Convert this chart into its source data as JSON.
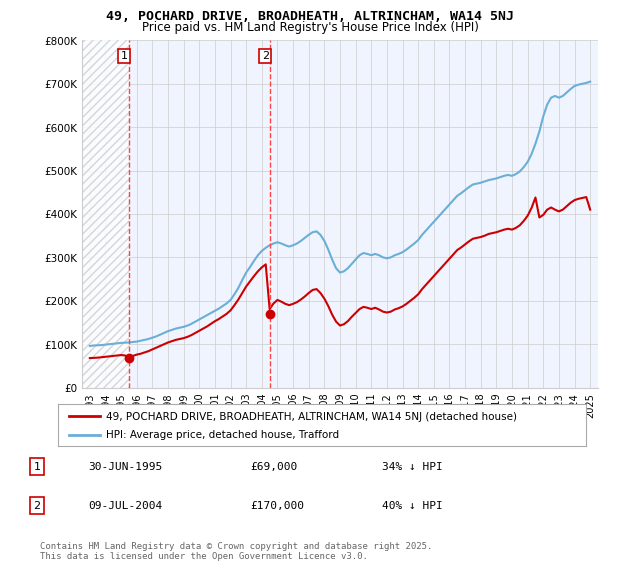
{
  "title": "49, POCHARD DRIVE, BROADHEATH, ALTRINCHAM, WA14 5NJ",
  "subtitle": "Price paid vs. HM Land Registry's House Price Index (HPI)",
  "xlabel": "",
  "ylabel": "",
  "ylim": [
    0,
    800000
  ],
  "xlim_start": 1992.5,
  "xlim_end": 2025.5,
  "yticks": [
    0,
    100000,
    200000,
    300000,
    400000,
    500000,
    600000,
    700000,
    800000
  ],
  "ytick_labels": [
    "£0",
    "£100K",
    "£200K",
    "£300K",
    "£400K",
    "£500K",
    "£600K",
    "£700K",
    "£800K"
  ],
  "xtick_labels": [
    "1993",
    "1994",
    "1995",
    "1996",
    "1997",
    "1998",
    "1999",
    "2000",
    "2001",
    "2002",
    "2003",
    "2004",
    "2005",
    "2006",
    "2007",
    "2008",
    "2009",
    "2010",
    "2011",
    "2012",
    "2013",
    "2014",
    "2015",
    "2016",
    "2017",
    "2018",
    "2019",
    "2020",
    "2021",
    "2022",
    "2023",
    "2024",
    "2025"
  ],
  "hpi_color": "#6baed6",
  "price_color": "#cc0000",
  "transaction_marker_color": "#cc0000",
  "vline_color": "#ff4444",
  "hatch_color": "#cccccc",
  "bg_color": "#f0f4ff",
  "grid_color": "#cccccc",
  "transactions": [
    {
      "date_num": 1995.5,
      "price": 69000,
      "label": "1",
      "date_str": "30-JUN-1995",
      "amount": "£69,000",
      "hpi_diff": "34% ↓ HPI"
    },
    {
      "date_num": 2004.52,
      "price": 170000,
      "label": "2",
      "date_str": "09-JUL-2004",
      "amount": "£170,000",
      "hpi_diff": "40% ↓ HPI"
    }
  ],
  "legend_label_price": "49, POCHARD DRIVE, BROADHEATH, ALTRINCHAM, WA14 5NJ (detached house)",
  "legend_label_hpi": "HPI: Average price, detached house, Trafford",
  "copyright_text": "Contains HM Land Registry data © Crown copyright and database right 2025.\nThis data is licensed under the Open Government Licence v3.0.",
  "hpi_data": {
    "years": [
      1993.0,
      1993.25,
      1993.5,
      1993.75,
      1994.0,
      1994.25,
      1994.5,
      1994.75,
      1995.0,
      1995.25,
      1995.5,
      1995.75,
      1996.0,
      1996.25,
      1996.5,
      1996.75,
      1997.0,
      1997.25,
      1997.5,
      1997.75,
      1998.0,
      1998.25,
      1998.5,
      1998.75,
      1999.0,
      1999.25,
      1999.5,
      1999.75,
      2000.0,
      2000.25,
      2000.5,
      2000.75,
      2001.0,
      2001.25,
      2001.5,
      2001.75,
      2002.0,
      2002.25,
      2002.5,
      2002.75,
      2003.0,
      2003.25,
      2003.5,
      2003.75,
      2004.0,
      2004.25,
      2004.5,
      2004.75,
      2005.0,
      2005.25,
      2005.5,
      2005.75,
      2006.0,
      2006.25,
      2006.5,
      2006.75,
      2007.0,
      2007.25,
      2007.5,
      2007.75,
      2008.0,
      2008.25,
      2008.5,
      2008.75,
      2009.0,
      2009.25,
      2009.5,
      2009.75,
      2010.0,
      2010.25,
      2010.5,
      2010.75,
      2011.0,
      2011.25,
      2011.5,
      2011.75,
      2012.0,
      2012.25,
      2012.5,
      2012.75,
      2013.0,
      2013.25,
      2013.5,
      2013.75,
      2014.0,
      2014.25,
      2014.5,
      2014.75,
      2015.0,
      2015.25,
      2015.5,
      2015.75,
      2016.0,
      2016.25,
      2016.5,
      2016.75,
      2017.0,
      2017.25,
      2017.5,
      2017.75,
      2018.0,
      2018.25,
      2018.5,
      2018.75,
      2019.0,
      2019.25,
      2019.5,
      2019.75,
      2020.0,
      2020.25,
      2020.5,
      2020.75,
      2021.0,
      2021.25,
      2021.5,
      2021.75,
      2022.0,
      2022.25,
      2022.5,
      2022.75,
      2023.0,
      2023.25,
      2023.5,
      2023.75,
      2024.0,
      2024.25,
      2024.5,
      2024.75,
      2025.0
    ],
    "values": [
      96000,
      97000,
      97500,
      98000,
      99000,
      100000,
      101000,
      102000,
      103000,
      103500,
      104000,
      105000,
      106000,
      108000,
      110000,
      112000,
      115000,
      118000,
      122000,
      126000,
      130000,
      133000,
      136000,
      138000,
      140000,
      143000,
      147000,
      152000,
      157000,
      162000,
      167000,
      172000,
      177000,
      182000,
      188000,
      194000,
      202000,
      215000,
      230000,
      248000,
      265000,
      278000,
      292000,
      305000,
      315000,
      322000,
      328000,
      332000,
      335000,
      332000,
      328000,
      325000,
      328000,
      332000,
      338000,
      345000,
      352000,
      358000,
      360000,
      352000,
      338000,
      318000,
      295000,
      275000,
      265000,
      268000,
      275000,
      285000,
      295000,
      305000,
      310000,
      308000,
      305000,
      308000,
      305000,
      300000,
      298000,
      300000,
      305000,
      308000,
      312000,
      318000,
      325000,
      332000,
      340000,
      352000,
      362000,
      372000,
      382000,
      392000,
      402000,
      412000,
      422000,
      432000,
      442000,
      448000,
      455000,
      462000,
      468000,
      470000,
      472000,
      475000,
      478000,
      480000,
      482000,
      485000,
      488000,
      490000,
      488000,
      492000,
      498000,
      508000,
      520000,
      538000,
      562000,
      590000,
      625000,
      652000,
      668000,
      672000,
      668000,
      672000,
      680000,
      688000,
      695000,
      698000,
      700000,
      702000,
      705000
    ]
  },
  "price_data": {
    "years": [
      1993.0,
      1993.25,
      1993.5,
      1993.75,
      1994.0,
      1994.25,
      1994.5,
      1994.75,
      1995.0,
      1995.25,
      1995.5,
      1995.75,
      1996.0,
      1996.25,
      1996.5,
      1996.75,
      1997.0,
      1997.25,
      1997.5,
      1997.75,
      1998.0,
      1998.25,
      1998.5,
      1998.75,
      1999.0,
      1999.25,
      1999.5,
      1999.75,
      2000.0,
      2000.25,
      2000.5,
      2000.75,
      2001.0,
      2001.25,
      2001.5,
      2001.75,
      2002.0,
      2002.25,
      2002.5,
      2002.75,
      2003.0,
      2003.25,
      2003.5,
      2003.75,
      2004.0,
      2004.25,
      2004.5,
      2004.75,
      2005.0,
      2005.25,
      2005.5,
      2005.75,
      2006.0,
      2006.25,
      2006.5,
      2006.75,
      2007.0,
      2007.25,
      2007.5,
      2007.75,
      2008.0,
      2008.25,
      2008.5,
      2008.75,
      2009.0,
      2009.25,
      2009.5,
      2009.75,
      2010.0,
      2010.25,
      2010.5,
      2010.75,
      2011.0,
      2011.25,
      2011.5,
      2011.75,
      2012.0,
      2012.25,
      2012.5,
      2012.75,
      2013.0,
      2013.25,
      2013.5,
      2013.75,
      2014.0,
      2014.25,
      2014.5,
      2014.75,
      2015.0,
      2015.25,
      2015.5,
      2015.75,
      2016.0,
      2016.25,
      2016.5,
      2016.75,
      2017.0,
      2017.25,
      2017.5,
      2017.75,
      2018.0,
      2018.25,
      2018.5,
      2018.75,
      2019.0,
      2019.25,
      2019.5,
      2019.75,
      2020.0,
      2020.25,
      2020.5,
      2020.75,
      2021.0,
      2021.25,
      2021.5,
      2021.75,
      2022.0,
      2022.25,
      2022.5,
      2022.75,
      2023.0,
      2023.25,
      2023.5,
      2023.75,
      2024.0,
      2024.25,
      2024.5,
      2024.75,
      2025.0
    ],
    "values": [
      68000,
      68500,
      69000,
      70000,
      71000,
      72000,
      73000,
      74000,
      75000,
      74000,
      69000,
      73000,
      76000,
      78000,
      81000,
      84000,
      88000,
      92000,
      96000,
      100000,
      104000,
      107000,
      110000,
      112000,
      114000,
      117000,
      121000,
      126000,
      131000,
      136000,
      141000,
      147000,
      153000,
      158000,
      164000,
      170000,
      178000,
      190000,
      203000,
      218000,
      233000,
      245000,
      257000,
      268000,
      277000,
      284000,
      181000,
      194000,
      202000,
      198000,
      193000,
      190000,
      193000,
      197000,
      203000,
      210000,
      218000,
      225000,
      227000,
      218000,
      205000,
      188000,
      168000,
      152000,
      143000,
      146000,
      153000,
      163000,
      172000,
      181000,
      186000,
      184000,
      181000,
      184000,
      180000,
      175000,
      173000,
      175000,
      180000,
      183000,
      187000,
      193000,
      200000,
      207000,
      215000,
      227000,
      237000,
      247000,
      257000,
      267000,
      277000,
      287000,
      297000,
      307000,
      317000,
      323000,
      330000,
      337000,
      343000,
      345000,
      347000,
      350000,
      354000,
      356000,
      358000,
      361000,
      364000,
      366000,
      364000,
      368000,
      374000,
      384000,
      396000,
      414000,
      438000,
      392000,
      398000,
      410000,
      415000,
      410000,
      406000,
      410000,
      418000,
      426000,
      432000,
      435000,
      437000,
      439000,
      410000
    ]
  }
}
